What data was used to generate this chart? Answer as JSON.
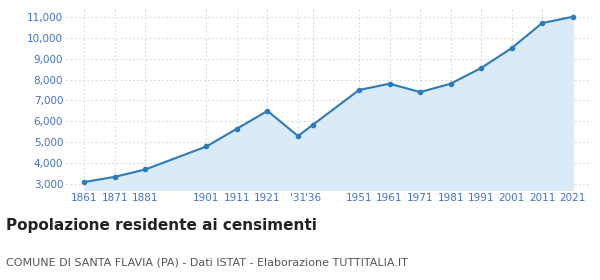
{
  "years": [
    1861,
    1871,
    1881,
    1901,
    1911,
    1921,
    1931,
    1936,
    1951,
    1961,
    1971,
    1981,
    1991,
    2001,
    2011,
    2021
  ],
  "year_labels": [
    "1861",
    "1871",
    "1881",
    "1901",
    "1911",
    "1921",
    "'31",
    "'36",
    "1951",
    "1961",
    "1971",
    "1981",
    "1991",
    "2001",
    "2011",
    "2021"
  ],
  "population": [
    3100,
    3350,
    3700,
    4800,
    5650,
    6500,
    5300,
    5850,
    7500,
    7800,
    7400,
    7800,
    8550,
    9500,
    10700,
    11000
  ],
  "line_color": "#2b7bba",
  "fill_color": "#daeaf7",
  "marker_color": "#2b7bba",
  "background_color": "#ffffff",
  "grid_color": "#cccccc",
  "title": "Popolazione residente ai censimenti",
  "subtitle": "COMUNE DI SANTA FLAVIA (PA) - Dati ISTAT - Elaborazione TUTTITALIA.IT",
  "ylim": [
    2700,
    11400
  ],
  "yticks": [
    3000,
    4000,
    5000,
    6000,
    7000,
    8000,
    9000,
    10000,
    11000
  ],
  "ytick_labels": [
    "3,000",
    "4,000",
    "5,000",
    "6,000",
    "7,000",
    "8,000",
    "9,000",
    "10,000",
    "11,000"
  ],
  "title_fontsize": 11,
  "subtitle_fontsize": 8,
  "tick_fontsize": 7.5,
  "title_color": "#222222",
  "subtitle_color": "#555555",
  "tick_color": "#4472c4"
}
